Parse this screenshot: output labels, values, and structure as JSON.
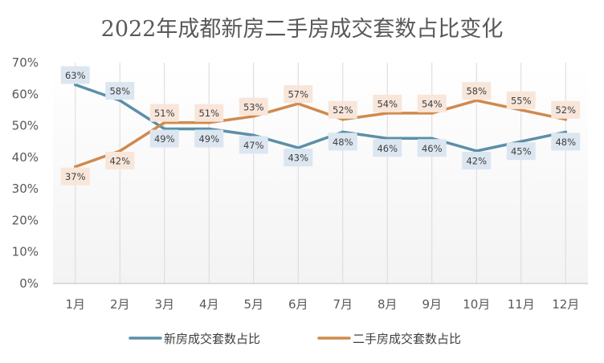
{
  "chart_data": {
    "type": "line",
    "title": "2022年成都新房二手房成交套数占比变化",
    "categories": [
      "1月",
      "2月",
      "3月",
      "4月",
      "5月",
      "6月",
      "7月",
      "8月",
      "9月",
      "10月",
      "11月",
      "12月"
    ],
    "ylim": [
      0,
      70
    ],
    "yticks": [
      0,
      10,
      20,
      30,
      40,
      50,
      60,
      70
    ],
    "ytick_format": "%",
    "grid": "vertical",
    "legend_position": "bottom",
    "series": [
      {
        "name": "新房成交套数占比",
        "color": "#5B8FA8",
        "label_bg": "#DCE6F0",
        "values": [
          63,
          58,
          49,
          49,
          47,
          43,
          48,
          46,
          46,
          42,
          45,
          48
        ],
        "labels": [
          "63%",
          "58%",
          "49%",
          "49%",
          "47%",
          "43%",
          "48%",
          "46%",
          "46%",
          "42%",
          "45%",
          "48%"
        ]
      },
      {
        "name": "二手房成交套数占比",
        "color": "#D08A4E",
        "label_bg": "#F8E6DA",
        "values": [
          37,
          42,
          51,
          51,
          53,
          57,
          52,
          54,
          54,
          58,
          55,
          52
        ],
        "labels": [
          "37%",
          "42%",
          "51%",
          "51%",
          "53%",
          "57%",
          "52%",
          "54%",
          "54%",
          "58%",
          "55%",
          "52%"
        ]
      }
    ]
  }
}
